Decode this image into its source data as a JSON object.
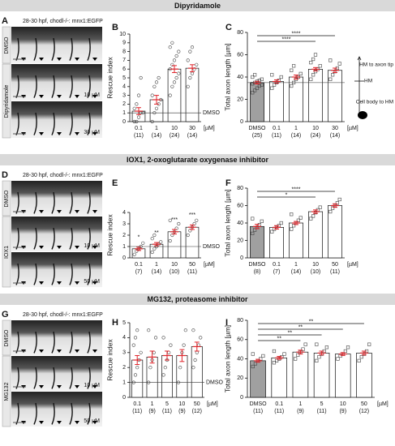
{
  "sections": [
    {
      "title": "Dipyridamole"
    },
    {
      "title": "IOX1, 2-oxoglutarate oxygenase inhibitor"
    },
    {
      "title": "MG132, proteasome inhibitor"
    }
  ],
  "image_panels": [
    {
      "panel": "A",
      "caption": "28-30 hpf, chodl-/-: mnx1:EGFP",
      "rows": [
        {
          "label": "DMSO"
        },
        {
          "label": "Dipyridamole",
          "doses": [
            "10 µM",
            "30 µM"
          ]
        }
      ]
    },
    {
      "panel": "D",
      "caption": "28-30 hpf, chodl-/-: mnx1:EGFP",
      "rows": [
        {
          "label": "DMSO"
        },
        {
          "label": "IOX1",
          "doses": [
            "10 µM",
            "50 µM"
          ]
        }
      ]
    },
    {
      "panel": "G",
      "caption": "28-30 hpf, chodl-/-: mnx1:EGFP",
      "rows": [
        {
          "label": "DMSO"
        },
        {
          "label": "MG132",
          "doses": [
            "10 µM",
            "50 µM"
          ]
        }
      ]
    }
  ],
  "chart_data": [
    {
      "type": "bar",
      "panel": "B",
      "y_label": "Rescue index",
      "unit_label": "[µM]",
      "marker": "circle",
      "categories": [
        "0.1",
        "1",
        "10",
        "30"
      ],
      "counts": [
        "(11)",
        "(14)",
        "(24)",
        "(14)"
      ],
      "values": [
        1.2,
        2.5,
        6.0,
        6.1
      ],
      "errors": [
        0.4,
        0.5,
        0.4,
        0.4
      ],
      "colors": [
        "#ffffff",
        "#ffffff",
        "#ffffff",
        "#ffffff"
      ],
      "points": [
        [
          0,
          0,
          0.5,
          1,
          1,
          1.5,
          2,
          3,
          5
        ],
        [
          0,
          1,
          1.5,
          2,
          2.5,
          3,
          4,
          4.5,
          5
        ],
        [
          3,
          4,
          4.5,
          5,
          5.5,
          6,
          6.5,
          7,
          7.5,
          8,
          8.5,
          9
        ],
        [
          4,
          5,
          5.5,
          6,
          6.5,
          7,
          8,
          8.5
        ]
      ],
      "reference": {
        "value": 1,
        "label": "DMSO"
      },
      "ylim": [
        0,
        10
      ],
      "yticks": [
        0,
        1,
        2,
        3,
        4,
        5,
        6,
        7,
        8,
        9,
        10
      ]
    },
    {
      "type": "bar",
      "panel": "C",
      "y_label": "Total axon length [µm]",
      "unit_label": "[µM]",
      "marker": "square",
      "categories": [
        "DMSO",
        "0.1",
        "1",
        "10",
        "30"
      ],
      "counts": [
        "(25)",
        "(11)",
        "(14)",
        "(24)",
        "(14)"
      ],
      "values": [
        35,
        36,
        40,
        47,
        46
      ],
      "errors": [
        1.2,
        1.5,
        1.8,
        1.5,
        2
      ],
      "colors": [
        "#a0a0a0",
        "#ffffff",
        "#ffffff",
        "#ffffff",
        "#ffffff"
      ],
      "points": [
        [
          26,
          28,
          30,
          32,
          33,
          34,
          35,
          36,
          37,
          38,
          40,
          42
        ],
        [
          30,
          33,
          35,
          37,
          40,
          42
        ],
        [
          32,
          35,
          38,
          40,
          43,
          46,
          50
        ],
        [
          38,
          42,
          45,
          47,
          50,
          53,
          56,
          60
        ],
        [
          38,
          42,
          45,
          48,
          52,
          55
        ]
      ],
      "reference": {
        "value": 35
      },
      "comparisons": [
        {
          "from": 0,
          "to": 3,
          "label": "****"
        },
        {
          "from": 0,
          "to": 4,
          "label": "****"
        }
      ],
      "annotations": [
        "HM to axon tip",
        "HM",
        "Cell body to HM"
      ],
      "ylim": [
        0,
        80
      ],
      "yticks": [
        0,
        20,
        40,
        60,
        80
      ]
    },
    {
      "type": "bar",
      "panel": "E",
      "y_label": "Rescue index",
      "unit_label": "[µM]",
      "marker": "circle",
      "categories": [
        "0.1",
        "1",
        "10",
        "50"
      ],
      "counts": [
        "(7)",
        "(14)",
        "(10)",
        "(11)"
      ],
      "values": [
        0.8,
        1.2,
        2.3,
        2.7
      ],
      "errors": [
        0.15,
        0.15,
        0.2,
        0.2
      ],
      "colors": [
        "#ffffff",
        "#ffffff",
        "#ffffff",
        "#ffffff"
      ],
      "points": [
        [
          0.3,
          0.6,
          0.8,
          1.0,
          1.3
        ],
        [
          0.5,
          0.8,
          1.0,
          1.2,
          1.4,
          1.7,
          2.0
        ],
        [
          1.5,
          2.0,
          2.3,
          2.6,
          3.0,
          3.3
        ],
        [
          2.0,
          2.4,
          2.7,
          3.0,
          3.3
        ]
      ],
      "bar_labels": [
        "*",
        "**",
        "***",
        "***"
      ],
      "reference": {
        "value": 1,
        "label": "DMSO"
      },
      "ylim": [
        0,
        4
      ],
      "yticks": [
        0,
        1,
        2,
        3,
        4
      ]
    },
    {
      "type": "bar",
      "panel": "F",
      "y_label": "Total axon length [µm]",
      "unit_label": "[µM]",
      "marker": "square",
      "categories": [
        "DMSO",
        "0.1",
        "1",
        "10",
        "50"
      ],
      "counts": [
        "(8)",
        "(7)",
        "(14)",
        "(10)",
        "(11)"
      ],
      "values": [
        36,
        35,
        40,
        53,
        60
      ],
      "errors": [
        2.5,
        2,
        1.8,
        2,
        2
      ],
      "colors": [
        "#a0a0a0",
        "#ffffff",
        "#ffffff",
        "#ffffff",
        "#ffffff"
      ],
      "points": [
        [
          28,
          32,
          35,
          38,
          42,
          45
        ],
        [
          30,
          33,
          35,
          37,
          40
        ],
        [
          33,
          37,
          40,
          43,
          46,
          50
        ],
        [
          45,
          48,
          52,
          55,
          58
        ],
        [
          53,
          57,
          60,
          63,
          67
        ]
      ],
      "comparisons": [
        {
          "from": 0,
          "to": 3,
          "label": "*"
        },
        {
          "from": 0,
          "to": 4,
          "label": "****"
        }
      ],
      "ylim": [
        0,
        80
      ],
      "yticks": [
        0,
        20,
        40,
        60,
        80
      ]
    },
    {
      "type": "bar",
      "panel": "H",
      "y_label": "Rescue index",
      "unit_label": "[µM]",
      "marker": "circle",
      "categories": [
        "0.1",
        "1",
        "5",
        "10",
        "50"
      ],
      "counts": [
        "(11)",
        "(9)",
        "(11)",
        "(9)",
        "(12)"
      ],
      "values": [
        2.5,
        2.7,
        2.8,
        2.8,
        3.4
      ],
      "errors": [
        0.3,
        0.4,
        0.3,
        0.4,
        0.3
      ],
      "colors": [
        "#ffffff",
        "#ffffff",
        "#ffffff",
        "#ffffff",
        "#ffffff"
      ],
      "points": [
        [
          1,
          1.5,
          2,
          2.5,
          3,
          3.5,
          4,
          4.5
        ],
        [
          1,
          2,
          2.5,
          3,
          4,
          4.5
        ],
        [
          1.5,
          2,
          2.5,
          3,
          3.5,
          4
        ],
        [
          1,
          2,
          3,
          3.5,
          4.5
        ],
        [
          2,
          2.5,
          3,
          3.5,
          4,
          4.5
        ]
      ],
      "reference": {
        "value": 1,
        "label": "DMSO"
      },
      "ylim": [
        0,
        5
      ],
      "yticks": [
        0,
        1,
        2,
        3,
        4,
        5
      ]
    },
    {
      "type": "bar",
      "panel": "I",
      "y_label": "Total axon length [µm]",
      "unit_label": "[µM]",
      "marker": "square",
      "categories": [
        "DMSO",
        "0.1",
        "1",
        "5",
        "10",
        "50"
      ],
      "counts": [
        "(11)",
        "(11)",
        "(9)",
        "(11)",
        "(9)",
        "(12)"
      ],
      "values": [
        38,
        41,
        47,
        46,
        45,
        46
      ],
      "errors": [
        1.5,
        1.5,
        2,
        2,
        1.5,
        2
      ],
      "colors": [
        "#a0a0a0",
        "#ffffff",
        "#ffffff",
        "#ffffff",
        "#ffffff",
        "#ffffff"
      ],
      "points": [
        [
          32,
          35,
          38,
          40,
          43,
          45
        ],
        [
          36,
          38,
          40,
          42,
          45,
          48
        ],
        [
          40,
          44,
          47,
          50,
          55
        ],
        [
          38,
          42,
          45,
          48,
          52,
          55
        ],
        [
          40,
          43,
          45,
          48,
          52
        ],
        [
          38,
          42,
          45,
          48,
          55
        ]
      ],
      "comparisons": [
        {
          "from": 0,
          "to": 2,
          "label": "**"
        },
        {
          "from": 0,
          "to": 3,
          "label": "**"
        },
        {
          "from": 0,
          "to": 4,
          "label": "**"
        },
        {
          "from": 0,
          "to": 5,
          "label": "**"
        }
      ],
      "ylim": [
        0,
        80
      ],
      "yticks": [
        0,
        20,
        40,
        60,
        80
      ]
    }
  ]
}
